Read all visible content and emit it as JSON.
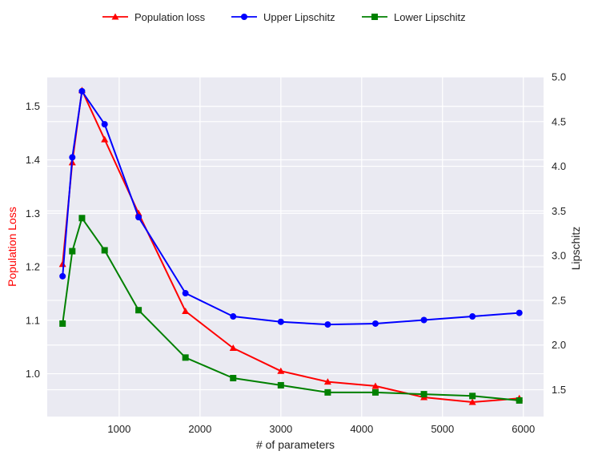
{
  "chart_data": {
    "type": "line",
    "xlabel": "# of parameters",
    "ylabel_left": "Population Loss",
    "ylabel_right": "Lipschitz",
    "xlim": [
      110,
      6250
    ],
    "ylim_left": [
      0.92,
      1.555
    ],
    "ylim_right": [
      1.2,
      5.0
    ],
    "x_ticks": [
      1000,
      2000,
      3000,
      4000,
      5000,
      6000
    ],
    "y_ticks_left": [
      1.0,
      1.1,
      1.2,
      1.3,
      1.4,
      1.5
    ],
    "y_ticks_right": [
      1.5,
      2.0,
      2.5,
      3.0,
      3.5,
      4.0,
      4.5,
      5.0
    ],
    "x_tick_labels": [
      "1000",
      "2000",
      "3000",
      "4000",
      "5000",
      "6000"
    ],
    "y_tick_labels_left": [
      "1.0",
      "1.1",
      "1.2",
      "1.3",
      "1.4",
      "1.5"
    ],
    "y_tick_labels_right": [
      "1.5",
      "2.0",
      "2.5",
      "3.0",
      "3.5",
      "4.0",
      "4.5",
      "5.0"
    ],
    "grid": true,
    "legend_position": "top-center",
    "series": [
      {
        "name": "Population loss",
        "axis": "left",
        "marker": "triangle",
        "color": "#ff0000",
        "x": [
          300,
          420,
          540,
          820,
          1240,
          1820,
          2410,
          3000,
          3580,
          4170,
          4770,
          5370,
          5950
        ],
        "y": [
          1.205,
          1.395,
          1.53,
          1.438,
          1.3,
          1.117,
          1.048,
          1.005,
          0.985,
          0.977,
          0.956,
          0.947,
          0.954
        ]
      },
      {
        "name": "Upper Lipschitz",
        "axis": "right",
        "marker": "circle",
        "color": "#0000ff",
        "x": [
          300,
          420,
          540,
          820,
          1240,
          1820,
          2410,
          3000,
          3580,
          4170,
          4770,
          5370,
          5950
        ],
        "y": [
          2.77,
          4.1,
          4.84,
          4.47,
          3.43,
          2.58,
          2.32,
          2.26,
          2.23,
          2.24,
          2.28,
          2.32,
          2.36
        ]
      },
      {
        "name": "Lower Lipschitz",
        "axis": "right",
        "marker": "square",
        "color": "#008000",
        "x": [
          300,
          420,
          540,
          820,
          1240,
          1820,
          2410,
          3000,
          3580,
          4170,
          4770,
          5370,
          5950
        ],
        "y": [
          2.24,
          3.05,
          3.42,
          3.06,
          2.39,
          1.86,
          1.63,
          1.55,
          1.47,
          1.47,
          1.45,
          1.43,
          1.38
        ]
      }
    ]
  }
}
